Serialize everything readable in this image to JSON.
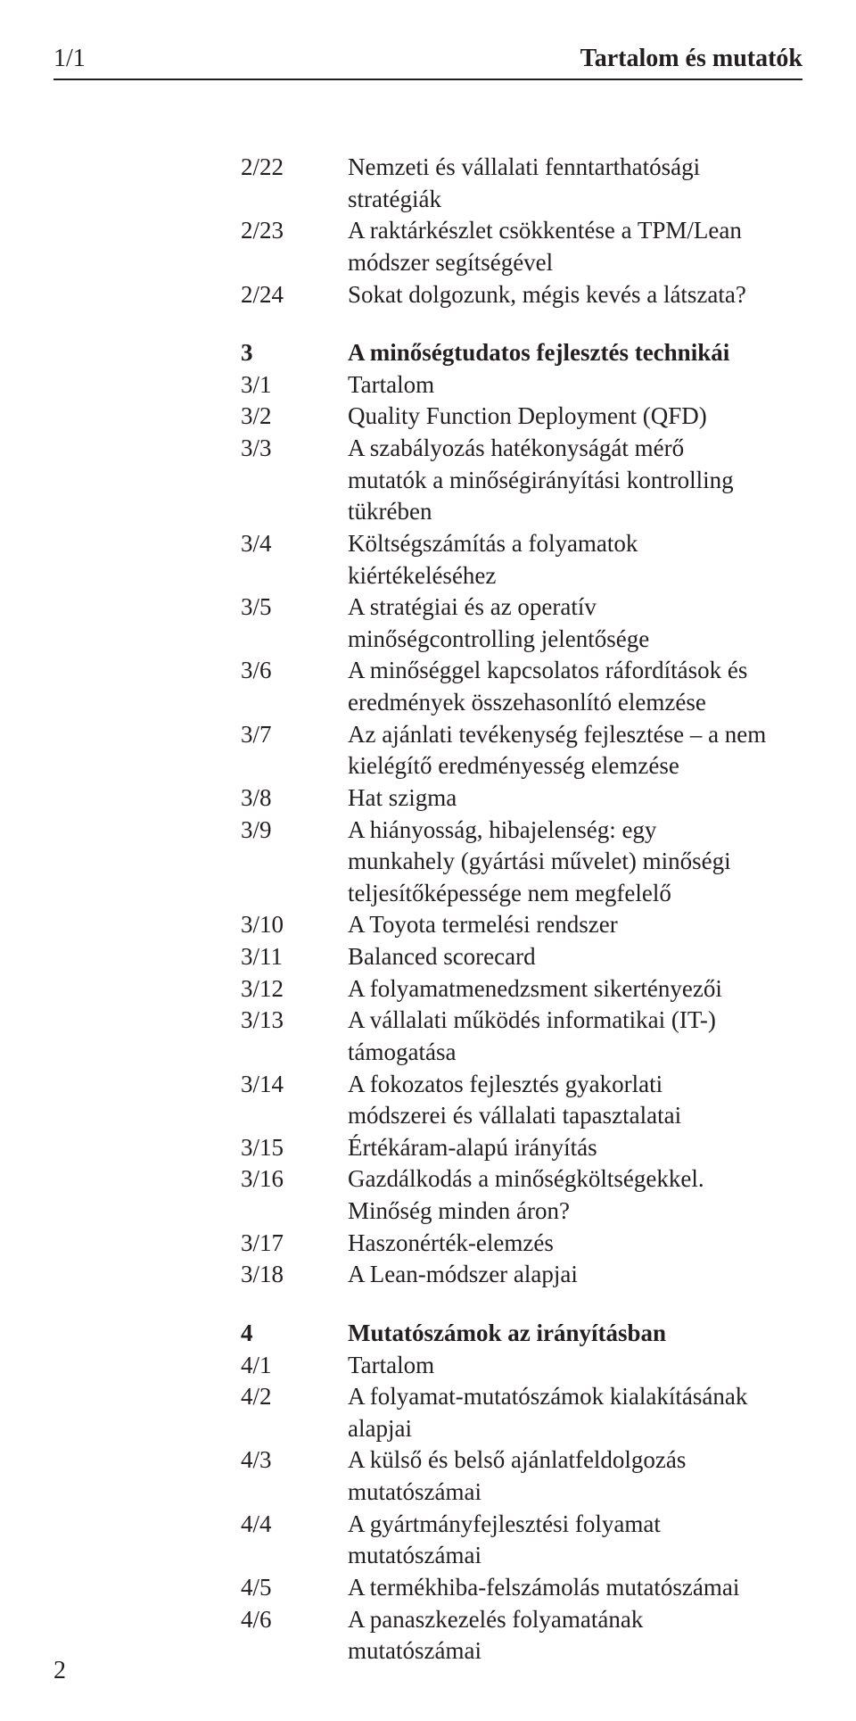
{
  "header": {
    "left": "1/1",
    "right": "Tartalom és mutatók"
  },
  "pageNumber": "2",
  "sections": [
    {
      "gapBefore": false,
      "rows": [
        {
          "num": "2/22",
          "text": "Nemzeti és vállalati fenntarthatósági stratégiák",
          "bold": false
        },
        {
          "num": "2/23",
          "text": "A raktárkészlet csökkentése a TPM/Lean módszer segítségével",
          "bold": false
        },
        {
          "num": "2/24",
          "text": "Sokat dolgozunk, mégis kevés a látszata?",
          "bold": false
        }
      ]
    },
    {
      "gapBefore": true,
      "rows": [
        {
          "num": "3",
          "text": "A minőségtudatos fejlesztés technikái",
          "bold": true
        },
        {
          "num": "3/1",
          "text": "Tartalom",
          "bold": false
        },
        {
          "num": "3/2",
          "text": "Quality Function Deployment (QFD)",
          "bold": false
        },
        {
          "num": "3/3",
          "text": "A szabályozás hatékonyságát mérő mutatók a minőségirányítási kontrolling tükrében",
          "bold": false
        },
        {
          "num": "3/4",
          "text": "Költségszámítás a folyamatok kiértékeléséhez",
          "bold": false
        },
        {
          "num": "3/5",
          "text": "A stratégiai és az operatív minőségcontrolling jelentősége",
          "bold": false
        },
        {
          "num": "3/6",
          "text": "A minőséggel kapcsolatos ráfordítások és eredmények összehasonlító elemzése",
          "bold": false
        },
        {
          "num": "3/7",
          "text": "Az ajánlati tevékenység fejlesztése – a nem kielégítő eredményesség elemzése",
          "bold": false
        },
        {
          "num": "3/8",
          "text": "Hat szigma",
          "bold": false
        },
        {
          "num": "3/9",
          "text": "A hiányosság, hibajelenség: egy munkahely (gyártási művelet) minőségi teljesítőképessége nem megfelelő",
          "bold": false
        },
        {
          "num": "3/10",
          "text": "A Toyota termelési rendszer",
          "bold": false
        },
        {
          "num": "3/11",
          "text": "Balanced scorecard",
          "bold": false
        },
        {
          "num": "3/12",
          "text": "A folyamatmenedzsment sikertényezői",
          "bold": false
        },
        {
          "num": "3/13",
          "text": "A vállalati működés informatikai (IT-) támogatása",
          "bold": false
        },
        {
          "num": "3/14",
          "text": "A fokozatos fejlesztés gyakorlati módszerei és vállalati tapasztalatai",
          "bold": false
        },
        {
          "num": "3/15",
          "text": "Értékáram-alapú irányítás",
          "bold": false
        },
        {
          "num": "3/16",
          "text": "Gazdálkodás a minőségköltségekkel. Minőség minden áron?",
          "bold": false
        },
        {
          "num": "3/17",
          "text": "Haszonérték-elemzés",
          "bold": false
        },
        {
          "num": "3/18",
          "text": "A Lean-módszer alapjai",
          "bold": false
        }
      ]
    },
    {
      "gapBefore": true,
      "rows": [
        {
          "num": "4",
          "text": "Mutatószámok az irányításban",
          "bold": true
        },
        {
          "num": "4/1",
          "text": "Tartalom",
          "bold": false
        },
        {
          "num": "4/2",
          "text": "A folyamat-mutatószámok kialakításának alapjai",
          "bold": false
        },
        {
          "num": "4/3",
          "text": "A külső és belső ajánlatfeldolgozás mutatószámai",
          "bold": false
        },
        {
          "num": "4/4",
          "text": "A gyártmányfejlesztési folyamat mutatószámai",
          "bold": false
        },
        {
          "num": "4/5",
          "text": "A termékhiba-felszámolás mutatószámai",
          "bold": false
        },
        {
          "num": "4/6",
          "text": "A panaszkezelés folyamatának mutatószámai",
          "bold": false
        }
      ]
    }
  ]
}
